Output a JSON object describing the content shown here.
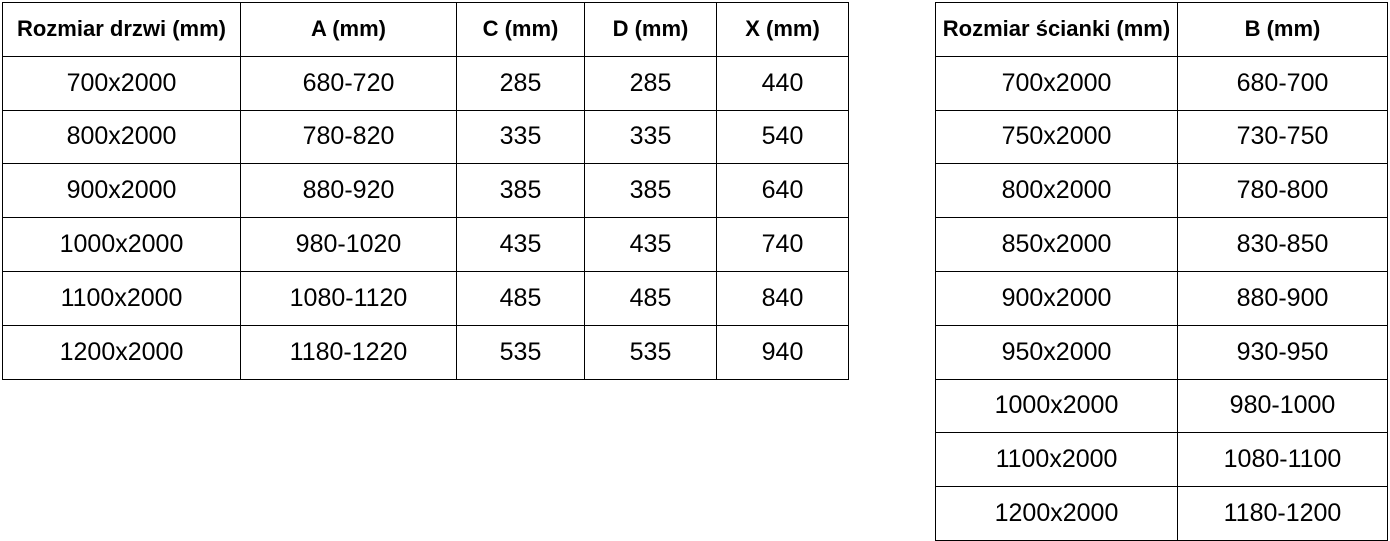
{
  "door_table": {
    "headers": [
      "Rozmiar drzwi (mm)",
      "A (mm)",
      "C (mm)",
      "D (mm)",
      "X (mm)"
    ],
    "rows": [
      [
        "700x2000",
        "680-720",
        "285",
        "285",
        "440"
      ],
      [
        "800x2000",
        "780-820",
        "335",
        "335",
        "540"
      ],
      [
        "900x2000",
        "880-920",
        "385",
        "385",
        "640"
      ],
      [
        "1000x2000",
        "980-1020",
        "435",
        "435",
        "740"
      ],
      [
        "1100x2000",
        "1080-1120",
        "485",
        "485",
        "840"
      ],
      [
        "1200x2000",
        "1180-1220",
        "535",
        "535",
        "940"
      ]
    ]
  },
  "wall_table": {
    "headers": [
      "Rozmiar ścianki (mm)",
      "B (mm)"
    ],
    "rows": [
      [
        "700x2000",
        "680-700"
      ],
      [
        "750x2000",
        "730-750"
      ],
      [
        "800x2000",
        "780-800"
      ],
      [
        "850x2000",
        "830-850"
      ],
      [
        "900x2000",
        "880-900"
      ],
      [
        "950x2000",
        "930-950"
      ],
      [
        "1000x2000",
        "980-1000"
      ],
      [
        "1100x2000",
        "1080-1100"
      ],
      [
        "1200x2000",
        "1180-1200"
      ]
    ]
  },
  "colors": {
    "border": "#000000",
    "text": "#000000",
    "background": "#ffffff"
  }
}
